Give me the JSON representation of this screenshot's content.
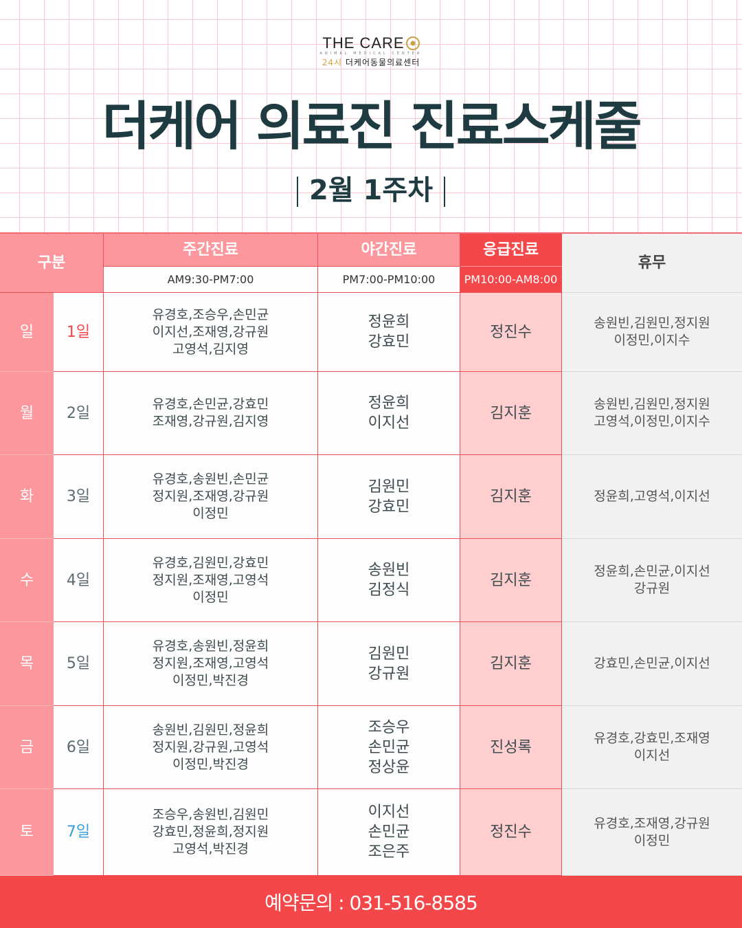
{
  "logo": {
    "brand": "THE CARE",
    "sub": "ANIMAL MEDICAL CENTER",
    "hours": "24시",
    "name": "더케어동물의료센터"
  },
  "title": "더케어 의료진 진료스케줄",
  "week": "2월 1주차",
  "header": {
    "category": "구분",
    "day": "주간진료",
    "night": "야간진료",
    "emergency": "응급진료",
    "off": "휴무",
    "day_time": "AM9:30-PM7:00",
    "night_time": "PM7:00-PM10:00",
    "emergency_time": "PM10:00-AM8:00"
  },
  "colors": {
    "pink": "#fb979d",
    "red": "#f4474a",
    "sunday": "#f4474a",
    "saturday": "#3a9fd6",
    "title": "#1d3b40"
  },
  "rows": [
    {
      "weekday": "일",
      "date": "1일",
      "day": [
        "유경호,조승우,손민균",
        "이지선,조재영,강규원",
        "고영석,김지영"
      ],
      "night": [
        "정윤희",
        "강효민"
      ],
      "emergency": "정진수",
      "off": [
        "송원빈,김원민,정지원",
        "이정민,이지수"
      ]
    },
    {
      "weekday": "월",
      "date": "2일",
      "day": [
        "유경호,손민균,강효민",
        "조재영,강규원,김지영"
      ],
      "night": [
        "정윤희",
        "이지선"
      ],
      "emergency": "김지훈",
      "off": [
        "송원빈,김원민,정지원",
        "고영석,이정민,이지수"
      ]
    },
    {
      "weekday": "화",
      "date": "3일",
      "day": [
        "유경호,송원빈,손민균",
        "정지원,조재영,강규원",
        "이정민"
      ],
      "night": [
        "김원민",
        "강효민"
      ],
      "emergency": "김지훈",
      "off": [
        "정윤희,고영석,이지선"
      ]
    },
    {
      "weekday": "수",
      "date": "4일",
      "day": [
        "유경호,김원민,강효민",
        "정지원,조재영,고영석",
        "이정민"
      ],
      "night": [
        "송원빈",
        "김정식"
      ],
      "emergency": "김지훈",
      "off": [
        "정윤희,손민균,이지선",
        "강규원"
      ]
    },
    {
      "weekday": "목",
      "date": "5일",
      "day": [
        "유경호,송원빈,정윤희",
        "정지원,조재영,고영석",
        "이정민,박진경"
      ],
      "night": [
        "김원민",
        "강규원"
      ],
      "emergency": "김지훈",
      "off": [
        "강효민,손민균,이지선"
      ]
    },
    {
      "weekday": "금",
      "date": "6일",
      "day": [
        "송원빈,김원민,정윤희",
        "정지원,강규원,고영석",
        "이정민,박진경"
      ],
      "night": [
        "조승우",
        "손민균",
        "정상윤"
      ],
      "emergency": "진성록",
      "off": [
        "유경호,강효민,조재영",
        "이지선"
      ]
    },
    {
      "weekday": "토",
      "date": "7일",
      "day": [
        "조승우,송원빈,김원민",
        "강효민,정윤희,정지원",
        "고영석,박진경"
      ],
      "night": [
        "이지선",
        "손민균",
        "조은주"
      ],
      "emergency": "정진수",
      "off": [
        "유경호,조재영,강규원",
        "이정민"
      ]
    }
  ],
  "footer": "예약문의 : 031-516-8585"
}
